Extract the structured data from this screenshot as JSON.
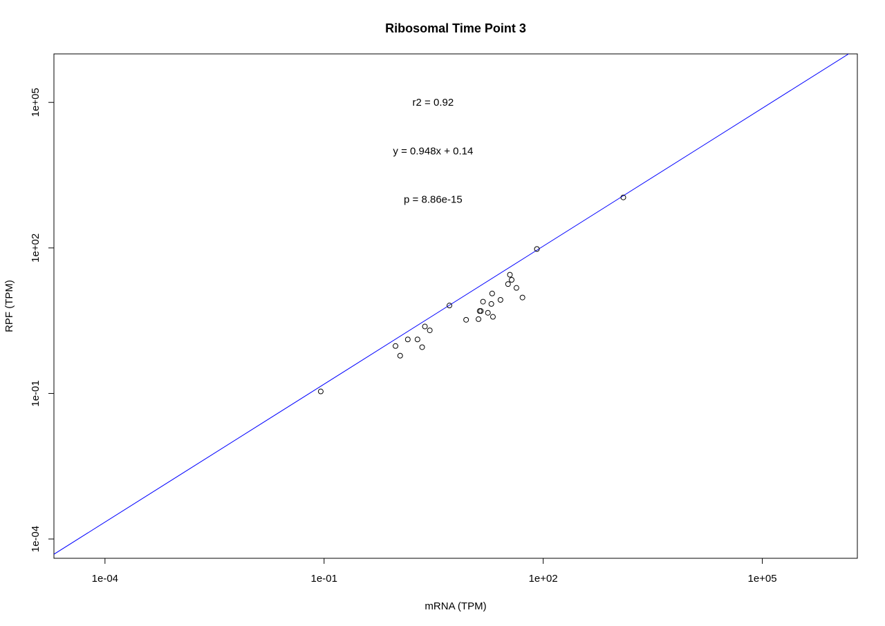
{
  "chart_data": {
    "type": "scatter",
    "title": "Ribosomal Time Point 3",
    "xlabel": "mRNA (TPM)",
    "ylabel": "RPF (TPM)",
    "xscale": "log10",
    "yscale": "log10",
    "xlim": [
      2e-05,
      2000000
    ],
    "ylim": [
      4e-05,
      1000000
    ],
    "x_ticks": [
      {
        "value": 0.0001,
        "label": "1e-04"
      },
      {
        "value": 0.1,
        "label": "1e-01"
      },
      {
        "value": 100,
        "label": "1e+02"
      },
      {
        "value": 100000,
        "label": "1e+05"
      }
    ],
    "y_ticks": [
      {
        "value": 0.0001,
        "label": "1e-04"
      },
      {
        "value": 0.1,
        "label": "1e-01"
      },
      {
        "value": 100,
        "label": "1e+02"
      },
      {
        "value": 100000,
        "label": "1e+05"
      }
    ],
    "points": [
      {
        "x": 0.09,
        "y": 0.11
      },
      {
        "x": 0.95,
        "y": 0.95
      },
      {
        "x": 1.1,
        "y": 0.6
      },
      {
        "x": 1.4,
        "y": 1.3
      },
      {
        "x": 1.9,
        "y": 1.3
      },
      {
        "x": 2.2,
        "y": 0.9
      },
      {
        "x": 2.4,
        "y": 2.4
      },
      {
        "x": 2.8,
        "y": 2.0
      },
      {
        "x": 5.2,
        "y": 6.5
      },
      {
        "x": 8.8,
        "y": 3.3
      },
      {
        "x": 13,
        "y": 3.4
      },
      {
        "x": 13.5,
        "y": 5.0
      },
      {
        "x": 14,
        "y": 5.0
      },
      {
        "x": 15,
        "y": 7.8
      },
      {
        "x": 17.5,
        "y": 4.6
      },
      {
        "x": 19.5,
        "y": 7.0
      },
      {
        "x": 20,
        "y": 11.5
      },
      {
        "x": 20.5,
        "y": 3.8
      },
      {
        "x": 26,
        "y": 8.5
      },
      {
        "x": 33,
        "y": 18
      },
      {
        "x": 35,
        "y": 28
      },
      {
        "x": 37,
        "y": 22
      },
      {
        "x": 43,
        "y": 15
      },
      {
        "x": 52,
        "y": 9.5
      },
      {
        "x": 82,
        "y": 95
      },
      {
        "x": 1250,
        "y": 1100
      }
    ],
    "fit_line": {
      "slope": 0.948,
      "intercept": 0.14,
      "color": "#0000ff"
    },
    "annotations": [
      {
        "text": "r2 = 0.92",
        "x": 1.0,
        "y": 100000
      },
      {
        "text": "y = 0.948x + 0.14",
        "x": 1.0,
        "y": 10000
      },
      {
        "text": "p = 8.86e-15",
        "x": 1.0,
        "y": 1000
      }
    ],
    "grid": false,
    "point_color": "#000000"
  }
}
